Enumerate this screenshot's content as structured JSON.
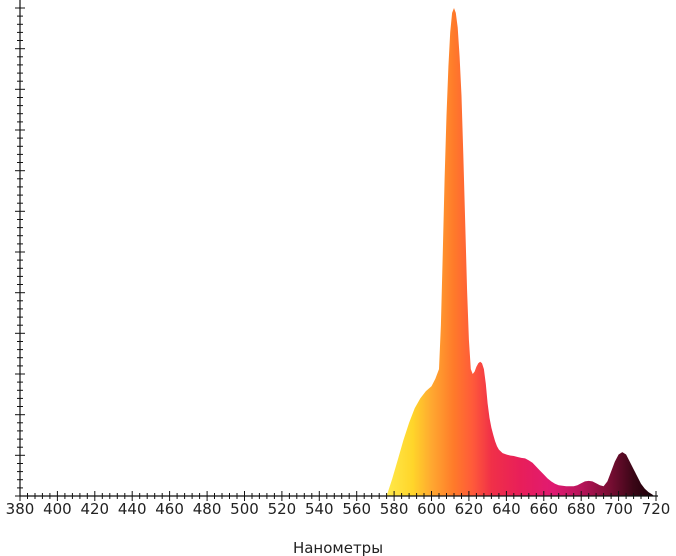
{
  "chart_data": {
    "type": "area",
    "title": "",
    "xlabel": "Нанометры",
    "ylabel": "",
    "xlim": [
      380,
      720
    ],
    "ylim": [
      0,
      1
    ],
    "grid": false,
    "legend": "none",
    "x_ticks": [
      "380",
      "400",
      "420",
      "440",
      "460",
      "480",
      "500",
      "520",
      "540",
      "560",
      "580",
      "600",
      "620",
      "640",
      "660",
      "680",
      "700",
      "720"
    ],
    "series": [
      {
        "x": [
          576,
          579,
          582,
          585,
          588,
          591,
          594,
          597,
          600,
          602,
          604,
          605,
          606,
          607,
          608,
          609,
          610,
          611,
          612,
          613,
          614,
          615,
          616,
          617,
          618,
          619,
          620,
          621,
          622,
          623,
          624,
          625,
          626,
          627,
          628,
          629,
          630,
          631,
          632,
          633,
          634,
          635,
          636,
          638,
          640,
          642,
          644,
          646,
          648,
          650,
          652,
          654,
          656,
          658,
          660,
          662,
          664,
          666,
          668,
          670,
          672,
          674,
          676,
          678,
          680,
          682,
          684,
          686,
          688,
          690,
          692,
          694,
          696,
          698,
          700,
          702,
          704,
          706,
          708,
          710,
          712,
          714,
          716,
          718,
          719
        ],
        "values": [
          0.0,
          0.035,
          0.075,
          0.115,
          0.15,
          0.18,
          0.2,
          0.215,
          0.225,
          0.24,
          0.26,
          0.35,
          0.5,
          0.65,
          0.78,
          0.88,
          0.95,
          0.99,
          1.0,
          0.99,
          0.96,
          0.9,
          0.82,
          0.7,
          0.56,
          0.42,
          0.32,
          0.26,
          0.25,
          0.255,
          0.265,
          0.272,
          0.275,
          0.272,
          0.26,
          0.23,
          0.19,
          0.16,
          0.14,
          0.125,
          0.112,
          0.102,
          0.095,
          0.088,
          0.085,
          0.083,
          0.082,
          0.08,
          0.078,
          0.077,
          0.073,
          0.068,
          0.06,
          0.052,
          0.044,
          0.036,
          0.03,
          0.025,
          0.022,
          0.021,
          0.02,
          0.02,
          0.02,
          0.022,
          0.026,
          0.03,
          0.031,
          0.03,
          0.026,
          0.022,
          0.02,
          0.03,
          0.05,
          0.07,
          0.085,
          0.09,
          0.085,
          0.07,
          0.055,
          0.04,
          0.025,
          0.015,
          0.008,
          0.003,
          0.0
        ]
      }
    ]
  }
}
